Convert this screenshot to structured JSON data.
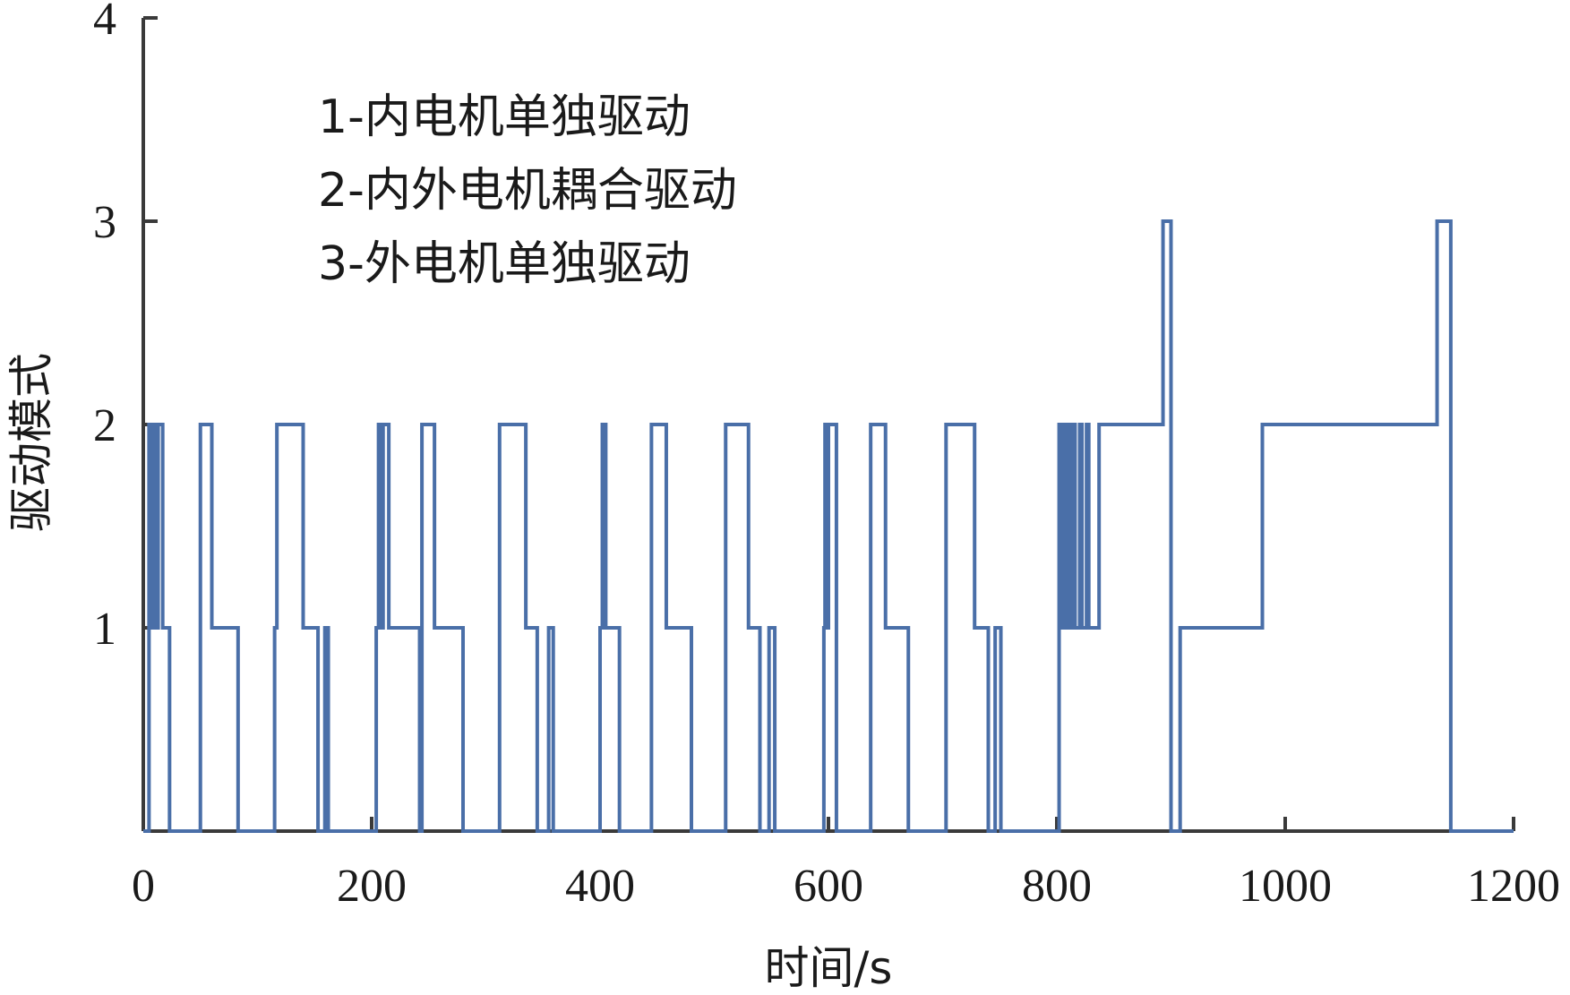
{
  "chart_data": {
    "type": "line",
    "title": "",
    "xlabel": "时间/s",
    "ylabel": "驱动模式",
    "xlim": [
      0,
      1200
    ],
    "ylim": [
      0,
      4
    ],
    "x_ticks": [
      "0",
      "200",
      "400",
      "600",
      "800",
      "1000",
      "1200"
    ],
    "y_ticks": [
      "1",
      "2",
      "3",
      "4"
    ],
    "grid": false,
    "legend_lines": [
      "1-内电机单独驱动",
      "2-内外电机耦合驱动",
      "3-外电机单独驱动"
    ],
    "series": [
      {
        "color": "#4a6fa8",
        "step": true,
        "x": [
          0,
          5,
          8,
          9,
          11,
          13,
          17,
          23,
          48,
          50,
          60,
          83,
          115,
          117,
          120,
          140,
          153,
          159,
          162,
          175,
          204,
          206,
          208,
          210,
          215,
          242,
          244,
          255,
          280,
          312,
          315,
          335,
          345,
          355,
          359,
          373,
          400,
          402,
          405,
          417,
          445,
          448,
          458,
          480,
          510,
          513,
          530,
          540,
          548,
          553,
          568,
          596,
          597,
          598,
          600,
          607,
          637,
          640,
          650,
          670,
          703,
          706,
          728,
          740,
          746,
          751,
          764,
          802,
          803,
          805,
          807,
          809,
          811,
          814,
          816,
          820,
          822,
          826,
          828,
          837,
          893,
          900,
          908,
          975,
          980,
          1133,
          1145
        ],
        "y": [
          0,
          2,
          1,
          2,
          1,
          2,
          1,
          0,
          0,
          2,
          1,
          0,
          1,
          2,
          2,
          1,
          0,
          1,
          0,
          0,
          1,
          2,
          1,
          2,
          1,
          0,
          2,
          1,
          0,
          2,
          2,
          1,
          0,
          1,
          0,
          0,
          1,
          2,
          1,
          0,
          2,
          2,
          1,
          0,
          2,
          2,
          1,
          0,
          1,
          0,
          0,
          1,
          2,
          1,
          2,
          0,
          2,
          2,
          1,
          0,
          2,
          2,
          1,
          0,
          1,
          0,
          0,
          2,
          1,
          2,
          1,
          2,
          1,
          2,
          1,
          2,
          1,
          2,
          1,
          2,
          3,
          0,
          1,
          1,
          2,
          3,
          0
        ]
      }
    ]
  }
}
